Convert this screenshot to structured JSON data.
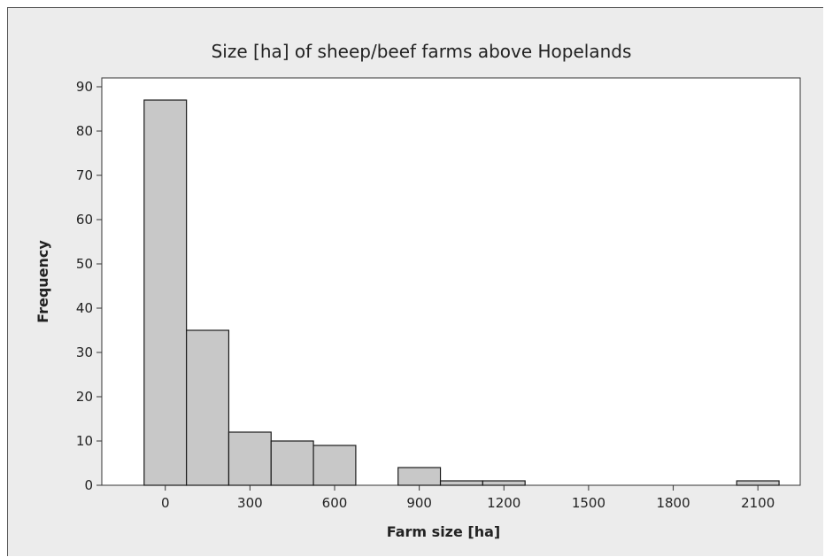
{
  "chart_data": {
    "type": "bar",
    "title": "Size [ha] of sheep/beef farms above Hopelands",
    "xlabel": "Farm size [ha]",
    "ylabel": "Frequency",
    "bin_width": 150,
    "bins": [
      {
        "center": 0,
        "value": 87
      },
      {
        "center": 150,
        "value": 35
      },
      {
        "center": 300,
        "value": 12
      },
      {
        "center": 450,
        "value": 10
      },
      {
        "center": 600,
        "value": 9
      },
      {
        "center": 900,
        "value": 4
      },
      {
        "center": 1050,
        "value": 1
      },
      {
        "center": 1200,
        "value": 1
      },
      {
        "center": 2100,
        "value": 1
      }
    ],
    "xlim": [
      -225,
      2250
    ],
    "ylim": [
      0,
      92
    ],
    "xticks": [
      0,
      300,
      600,
      900,
      1200,
      1500,
      1800,
      2100
    ],
    "yticks": [
      0,
      10,
      20,
      30,
      40,
      50,
      60,
      70,
      80,
      90
    ],
    "grid": false,
    "colors": {
      "bar_fill": "#c8c8c8",
      "bar_edge": "#1a1a1a",
      "plot_bg": "#ffffff",
      "frame_bg": "#ececec"
    }
  }
}
